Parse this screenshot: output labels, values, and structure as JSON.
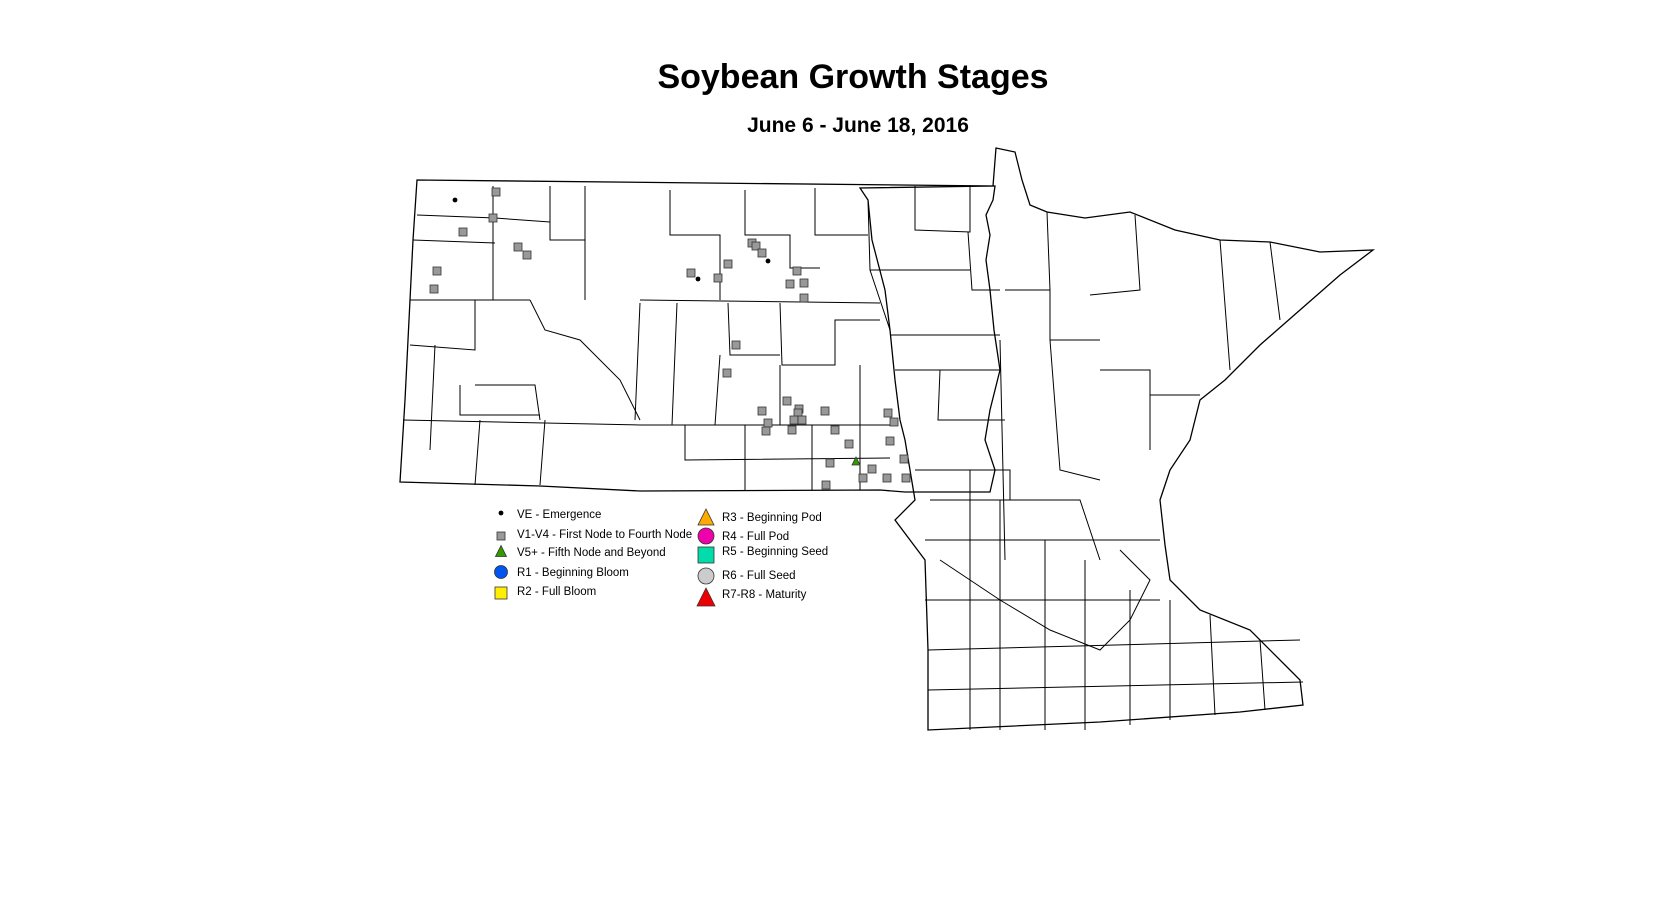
{
  "title": "Soybean Growth Stages",
  "subtitle": "June 6 - June 18, 2016",
  "legend": [
    {
      "key": "VE",
      "label": "VE - Emergence",
      "symbol": "dot",
      "color": "#000000"
    },
    {
      "key": "V1V4",
      "label": "V1-V4 - First Node to Fourth Node",
      "symbol": "square",
      "color": "#999999"
    },
    {
      "key": "V5",
      "label": "V5+ - Fifth Node and Beyond",
      "symbol": "triangle",
      "color": "#339900"
    },
    {
      "key": "R1",
      "label": "R1 - Beginning Bloom",
      "symbol": "circle",
      "color": "#0055ee"
    },
    {
      "key": "R2",
      "label": "R2 - Full Bloom",
      "symbol": "square",
      "color": "#ffee00"
    },
    {
      "key": "R3",
      "label": "R3 - Beginning Pod",
      "symbol": "triangle",
      "color": "#ffaa00"
    },
    {
      "key": "R4",
      "label": "R4 - Full Pod",
      "symbol": "circle",
      "color": "#ee00aa"
    },
    {
      "key": "R5",
      "label": "R5 - Beginning Seed",
      "symbol": "square",
      "color": "#00ddaa"
    },
    {
      "key": "R6",
      "label": "R6 - Full Seed",
      "symbol": "circle",
      "color": "#cccccc"
    },
    {
      "key": "R7R8",
      "label": "R7-R8 - Maturity",
      "symbol": "triangle",
      "color": "#ee0000"
    }
  ]
}
